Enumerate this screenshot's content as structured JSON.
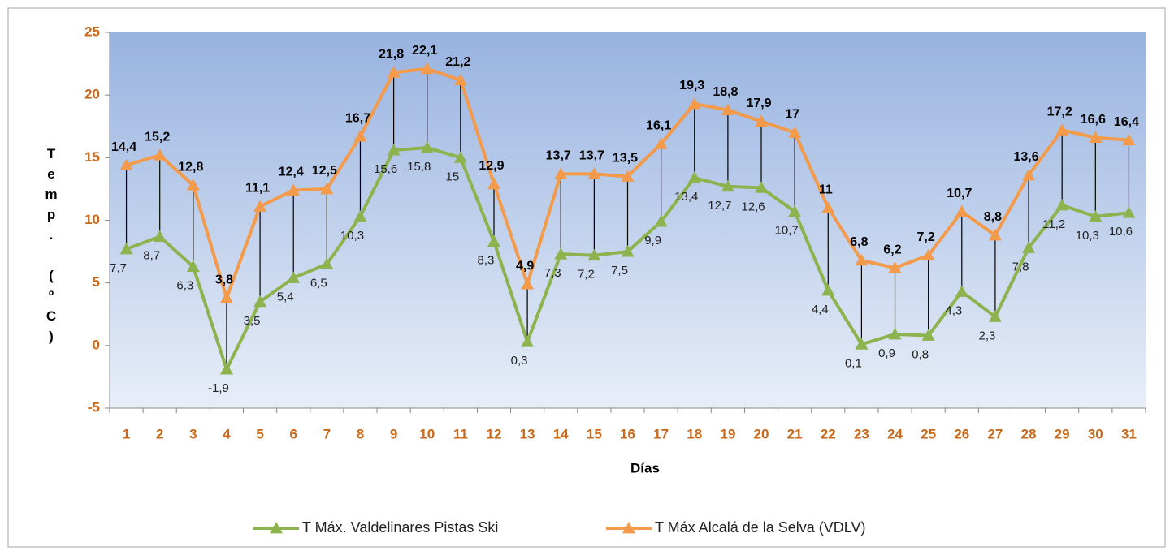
{
  "chart_data": {
    "type": "line",
    "x_label": "Días",
    "y_label": "Temp. (ºC)",
    "categories": [
      "1",
      "2",
      "3",
      "4",
      "5",
      "6",
      "7",
      "8",
      "9",
      "10",
      "11",
      "12",
      "13",
      "14",
      "15",
      "16",
      "17",
      "18",
      "19",
      "20",
      "21",
      "22",
      "23",
      "24",
      "25",
      "26",
      "27",
      "28",
      "29",
      "30",
      "31"
    ],
    "series": [
      {
        "name": "T Máx. Valdelinares Pistas Ski",
        "color": "#8db34f",
        "values": [
          7.7,
          8.7,
          6.3,
          -1.9,
          3.5,
          5.4,
          6.5,
          10.3,
          15.6,
          15.8,
          15,
          8.3,
          0.3,
          7.3,
          7.2,
          7.5,
          9.9,
          13.4,
          12.7,
          12.6,
          10.7,
          4.4,
          0.1,
          0.9,
          0.8,
          4.3,
          2.3,
          7.8,
          11.2,
          10.3,
          10.6
        ],
        "value_labels": [
          "7,7",
          "8,7",
          "6,3",
          "-1,9",
          "3,5",
          "5,4",
          "6,5",
          "10,3",
          "15,6",
          "15,8",
          "15",
          "8,3",
          "0,3",
          "7,3",
          "7,2",
          "7,5",
          "9,9",
          "13,4",
          "12,7",
          "12,6",
          "10,7",
          "4,4",
          "0,1",
          "0,9",
          "0,8",
          "4,3",
          "2,3",
          "7,8",
          "11,2",
          "10,3",
          "10,6"
        ]
      },
      {
        "name": "T Máx Alcalá de la Selva (VDLV)",
        "color": "#f39a4b",
        "values": [
          14.4,
          15.2,
          12.8,
          3.8,
          11.1,
          12.4,
          12.5,
          16.7,
          21.8,
          22.1,
          21.2,
          12.9,
          4.9,
          13.7,
          13.7,
          13.5,
          16.1,
          19.3,
          18.8,
          17.9,
          17,
          11,
          6.8,
          6.2,
          7.2,
          10.7,
          8.8,
          13.6,
          17.2,
          16.6,
          16.4
        ],
        "value_labels": [
          "14,4",
          "15,2",
          "12,8",
          "3,8",
          "11,1",
          "12,4",
          "12,5",
          "16,7",
          "21,8",
          "22,1",
          "21,2",
          "12,9",
          "4,9",
          "13,7",
          "13,7",
          "13,5",
          "16,1",
          "19,3",
          "18,8",
          "17,9",
          "17",
          "11",
          "6,8",
          "6,2",
          "7,2",
          "10,7",
          "8,8",
          "13,6",
          "17,2",
          "16,6",
          "16,4"
        ]
      }
    ],
    "ylim": [
      -5,
      25
    ],
    "yticks": [
      -5,
      0,
      5,
      10,
      15,
      20,
      25
    ]
  }
}
